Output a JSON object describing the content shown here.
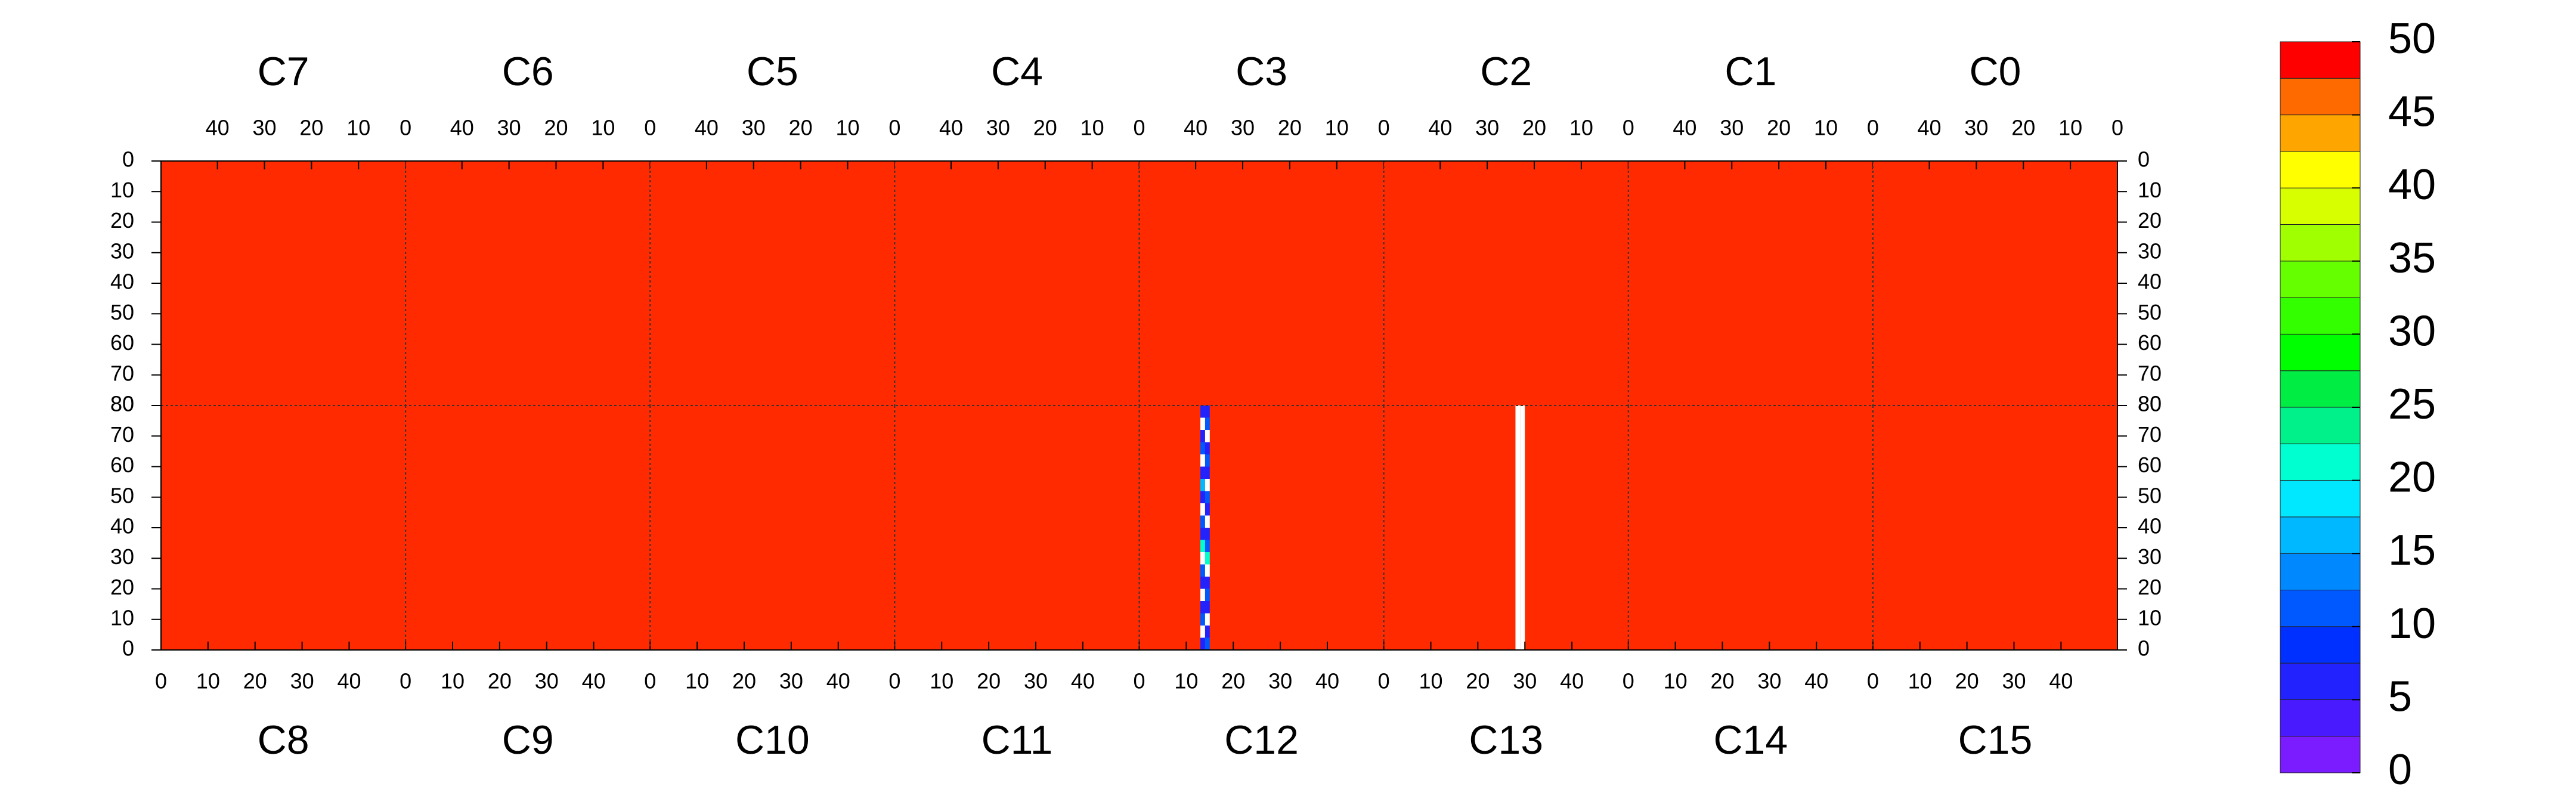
{
  "chart_data": {
    "type": "heatmap",
    "top_xaxis_reversed": true,
    "xlim": [
      0,
      52
    ],
    "xticks": [
      0,
      10,
      20,
      30,
      40
    ],
    "ylim": [
      0,
      80
    ],
    "yticks": [
      0,
      10,
      20,
      30,
      40,
      50,
      60,
      70,
      80
    ],
    "grid": true,
    "top_panels": [
      {
        "name": "C7",
        "value": 50,
        "strips": []
      },
      {
        "name": "C6",
        "value": 50,
        "strips": []
      },
      {
        "name": "C5",
        "value": 50,
        "strips": []
      },
      {
        "name": "C4",
        "value": 50,
        "strips": []
      },
      {
        "name": "C3",
        "value": 50,
        "strips": []
      },
      {
        "name": "C2",
        "value": 50,
        "strips": []
      },
      {
        "name": "C1",
        "value": 50,
        "strips": []
      },
      {
        "name": "C0",
        "value": 50,
        "strips": []
      }
    ],
    "bottom_panels": [
      {
        "name": "C8",
        "value": 50,
        "strips": []
      },
      {
        "name": "C9",
        "value": 50,
        "strips": []
      },
      {
        "name": "C10",
        "value": 50,
        "strips": []
      },
      {
        "name": "C11",
        "value": 50,
        "strips": []
      },
      {
        "name": "C12",
        "value": 50,
        "strips": [
          {
            "x": 13,
            "values": [
              5,
              null,
              10,
              5,
              null,
              5,
              10,
              null,
              20,
              5,
              10,
              null,
              5,
              15,
              5,
              null,
              10,
              5,
              null,
              5
            ]
          },
          {
            "x": 14,
            "values": [
              10,
              5,
              null,
              5,
              10,
              5,
              null,
              20,
              10,
              5,
              null,
              5,
              10,
              null,
              5,
              10,
              5,
              null,
              10,
              5
            ]
          }
        ]
      },
      {
        "name": "C13",
        "value": 50,
        "strips": [
          {
            "x": 28,
            "values": [
              null
            ]
          },
          {
            "x": 29,
            "values": [
              null
            ]
          }
        ]
      },
      {
        "name": "C14",
        "value": 50,
        "strips": []
      },
      {
        "name": "C15",
        "value": 50,
        "strips": []
      }
    ],
    "colorbar": {
      "levels": [
        0,
        2.5,
        5,
        7.5,
        10,
        12.5,
        15,
        17.5,
        20,
        22.5,
        25,
        27.5,
        30,
        32.5,
        35,
        37.5,
        40,
        42.5,
        45,
        47.5,
        50
      ],
      "colors": [
        "#7a1cff",
        "#4a1aff",
        "#2222ff",
        "#0030ff",
        "#0058ff",
        "#0088ff",
        "#00b8ff",
        "#00e8ff",
        "#00ffd0",
        "#00f08a",
        "#00ee44",
        "#00ff00",
        "#33ff00",
        "#66ff00",
        "#a0ff00",
        "#d8ff00",
        "#ffff00",
        "#ffa500",
        "#ff6a00",
        "#ff2a00"
      ],
      "top_color": "#ff0000",
      "ticks": [
        0,
        5,
        10,
        15,
        20,
        25,
        30,
        35,
        40,
        45,
        50
      ]
    }
  }
}
